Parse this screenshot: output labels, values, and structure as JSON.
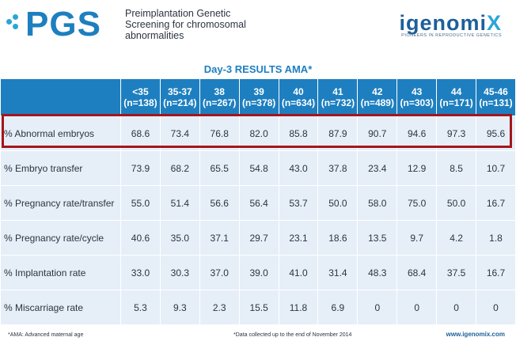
{
  "header": {
    "logo_text": "PGS",
    "subtitle_lines": [
      "Preimplantation Genetic",
      "Screening for chromosomal",
      "abnormalities"
    ],
    "brand_name": "igenomi",
    "brand_mark": "X",
    "brand_tagline": "PIONEERS IN REPRODUCTIVE GENETICS"
  },
  "results_title": "Day-3 RESULTS AMA*",
  "table": {
    "columns": [
      {
        "age": "<35",
        "n": "(n=138)"
      },
      {
        "age": "35-37",
        "n": "(n=214)"
      },
      {
        "age": "38",
        "n": "(n=267)"
      },
      {
        "age": "39",
        "n": "(n=378)"
      },
      {
        "age": "40",
        "n": "(n=634)"
      },
      {
        "age": "41",
        "n": "(n=732)"
      },
      {
        "age": "42",
        "n": "(n=489)"
      },
      {
        "age": "43",
        "n": "(n=303)"
      },
      {
        "age": "44",
        "n": "(n=171)"
      },
      {
        "age": "45-46",
        "n": "(n=131)"
      }
    ],
    "rows": [
      {
        "label": "% Abnormal embryos",
        "values": [
          "68.6",
          "73.4",
          "76.8",
          "82.0",
          "85.8",
          "87.9",
          "90.7",
          "94.6",
          "97.3",
          "95.6"
        ]
      },
      {
        "label": "% Embryo transfer",
        "values": [
          "73.9",
          "68.2",
          "65.5",
          "54.8",
          "43.0",
          "37.8",
          "23.4",
          "12.9",
          "8.5",
          "10.7"
        ]
      },
      {
        "label": "% Pregnancy rate/transfer",
        "values": [
          "55.0",
          "51.4",
          "56.6",
          "56.4",
          "53.7",
          "50.0",
          "58.0",
          "75.0",
          "50.0",
          "16.7"
        ]
      },
      {
        "label": "% Pregnancy rate/cycle",
        "values": [
          "40.6",
          "35.0",
          "37.1",
          "29.7",
          "23.1",
          "18.6",
          "13.5",
          "9.7",
          "4.2",
          "1.8"
        ]
      },
      {
        "label": "% Implantation rate",
        "values": [
          "33.0",
          "30.3",
          "37.0",
          "39.0",
          "41.0",
          "31.4",
          "48.3",
          "68.4",
          "37.5",
          "16.7"
        ]
      },
      {
        "label": "% Miscarriage rate",
        "values": [
          "5.3",
          "9.3",
          "2.3",
          "15.5",
          "11.8",
          "6.9",
          "0",
          "0",
          "0",
          "0"
        ]
      }
    ],
    "highlighted_row": "% Abnormal embryos"
  },
  "footer": {
    "ama_note": "*AMA: Advanced maternal age",
    "data_note": "*Data collected up to the end of November 2014",
    "website": "www.igenomix.com"
  },
  "colors": {
    "header_blue": "#1d7fc0",
    "cell_bg": "#e6eff8",
    "highlight_border": "#a3161c",
    "accent_cyan": "#2aa6d8"
  }
}
